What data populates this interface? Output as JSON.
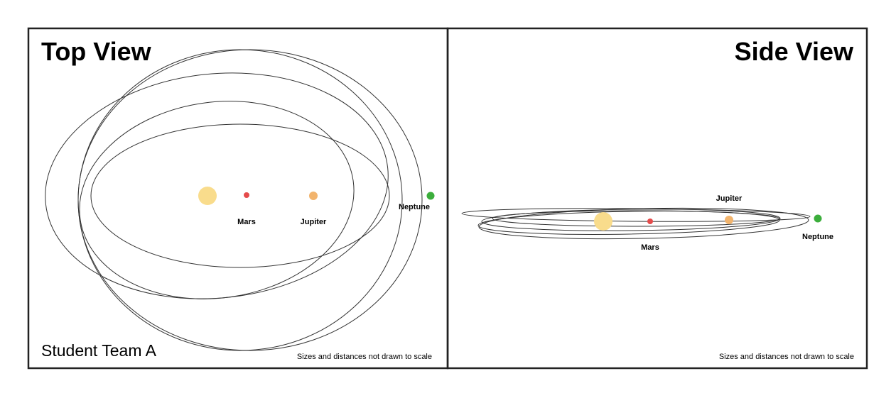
{
  "panels": {
    "top": {
      "title": "Top View",
      "team": "Student Team A",
      "note": "Sizes and distances not drawn to scale",
      "labels": {
        "mars": "Mars",
        "jupiter": "Jupiter",
        "neptune": "Neptune"
      }
    },
    "side": {
      "title": "Side View",
      "note": "Sizes and distances not drawn to scale",
      "labels": {
        "mars": "Mars",
        "jupiter": "Jupiter",
        "neptune": "Neptune"
      }
    }
  },
  "colors": {
    "sun": "#f9dc8c",
    "mars": "#e54b4b",
    "jupiter": "#f2b46d",
    "neptune": "#3cae3c",
    "frame": "#222222",
    "orbit": "#333333"
  }
}
